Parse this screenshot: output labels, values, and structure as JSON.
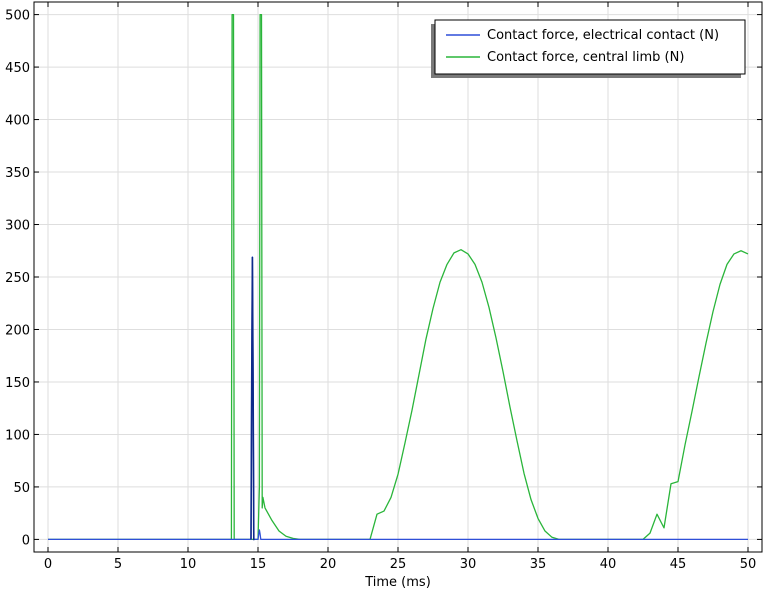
{
  "chart_data": {
    "type": "line",
    "title": "",
    "xlabel": "Time (ms)",
    "ylabel": "",
    "xlim": [
      -1,
      51
    ],
    "ylim": [
      -12,
      512
    ],
    "xticks": [
      0,
      5,
      10,
      15,
      20,
      25,
      30,
      35,
      40,
      45,
      50
    ],
    "yticks": [
      0,
      50,
      100,
      150,
      200,
      250,
      300,
      350,
      400,
      450,
      500
    ],
    "grid": true,
    "legend_position": "top-right",
    "series": [
      {
        "name": "Contact force, electrical contact (N)",
        "color": "#2f4fd8",
        "spike_color": "#0d2a8a",
        "x": [
          0,
          14.5,
          14.55,
          14.6,
          14.65,
          14.7,
          14.75,
          15.0,
          15.05,
          15.1,
          15.15,
          15.2,
          50
        ],
        "y": [
          0,
          0,
          150,
          269,
          150,
          0,
          0,
          0,
          5,
          9,
          5,
          0,
          0
        ]
      },
      {
        "name": "Contact force, central limb (N)",
        "color": "#2ab53a",
        "x": [
          0,
          13.1,
          13.15,
          13.25,
          13.3,
          15.0,
          15.1,
          15.15,
          15.25,
          15.3,
          15.35,
          15.5,
          16,
          16.5,
          17,
          17.5,
          18,
          22,
          22.5,
          23,
          23.5,
          24,
          24.5,
          25,
          25.5,
          26,
          26.5,
          27,
          27.5,
          28,
          28.5,
          29,
          29.5,
          30,
          30.5,
          31,
          31.5,
          32,
          32.5,
          33,
          33.5,
          34,
          34.5,
          35,
          35.5,
          36,
          36.5,
          37,
          37.5,
          38,
          42,
          42.5,
          43,
          43.5,
          44,
          44.5,
          45,
          45.5,
          46,
          46.5,
          47,
          47.5,
          48,
          48.5,
          49,
          49.5,
          50
        ],
        "y": [
          0,
          0,
          500,
          500,
          0,
          0,
          50,
          500,
          500,
          30,
          40,
          30,
          18,
          8,
          3,
          1,
          0,
          0,
          0,
          0,
          24,
          27,
          40,
          62,
          92,
          123,
          157,
          191,
          220,
          245,
          262,
          273,
          276,
          272,
          262,
          245,
          221,
          192,
          160,
          126,
          94,
          63,
          38,
          20,
          8,
          2,
          0,
          0,
          0,
          0,
          0,
          0,
          6,
          24,
          11,
          53,
          55,
          90,
          122,
          155,
          187,
          217,
          243,
          262,
          272,
          275,
          272
        ]
      }
    ]
  }
}
